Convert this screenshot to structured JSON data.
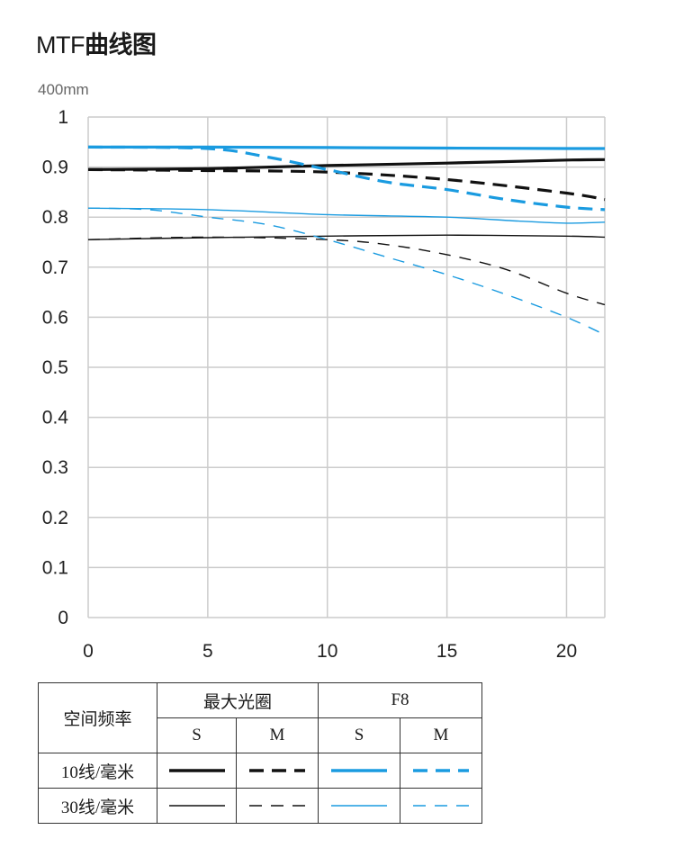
{
  "header": {
    "title_latin": "MTF",
    "title_cjk": "曲线图",
    "subtitle": "400mm"
  },
  "colors": {
    "black": "#111111",
    "blue": "#1a9be0",
    "grid": "#cccccc"
  },
  "chart_data": {
    "type": "line",
    "title": "MTF曲线图",
    "subtitle": "400mm",
    "xlim": [
      0,
      21.6
    ],
    "ylim": [
      0,
      1
    ],
    "x_ticks": [
      "0",
      "5",
      "10",
      "15",
      "20"
    ],
    "y_ticks": [
      "0",
      "0.1",
      "0.2",
      "0.3",
      "0.4",
      "0.5",
      "0.6",
      "0.7",
      "0.8",
      "0.9",
      "1"
    ],
    "grid": true,
    "series": [
      {
        "aperture": "最大光圈",
        "orientation": "S",
        "frequency": "10线/毫米",
        "color": "black",
        "style": "solid",
        "weight": "thick",
        "x": [
          0,
          5,
          10,
          15,
          20,
          21.6
        ],
        "y": [
          0.895,
          0.897,
          0.903,
          0.908,
          0.914,
          0.915
        ]
      },
      {
        "aperture": "最大光圈",
        "orientation": "M",
        "frequency": "10线/毫米",
        "color": "black",
        "style": "dashed",
        "weight": "thick",
        "x": [
          0,
          5,
          10,
          15,
          20,
          21.6
        ],
        "y": [
          0.895,
          0.893,
          0.89,
          0.875,
          0.848,
          0.835
        ]
      },
      {
        "aperture": "F8",
        "orientation": "S",
        "frequency": "10线/毫米",
        "color": "blue",
        "style": "solid",
        "weight": "thick",
        "x": [
          0,
          5,
          10,
          15,
          20,
          21.6
        ],
        "y": [
          0.94,
          0.94,
          0.939,
          0.938,
          0.937,
          0.937
        ]
      },
      {
        "aperture": "F8",
        "orientation": "M",
        "frequency": "10线/毫米",
        "color": "blue",
        "style": "dashed",
        "weight": "thick",
        "x": [
          0,
          5,
          7.5,
          10,
          12.5,
          15,
          17.5,
          20,
          21.6
        ],
        "y": [
          0.94,
          0.937,
          0.92,
          0.895,
          0.87,
          0.855,
          0.835,
          0.82,
          0.815
        ]
      },
      {
        "aperture": "最大光圈",
        "orientation": "S",
        "frequency": "30线/毫米",
        "color": "black",
        "style": "solid",
        "weight": "thin",
        "x": [
          0,
          5,
          10,
          15,
          20,
          21.6
        ],
        "y": [
          0.755,
          0.759,
          0.762,
          0.764,
          0.762,
          0.76
        ]
      },
      {
        "aperture": "最大光圈",
        "orientation": "M",
        "frequency": "30线/毫米",
        "color": "black",
        "style": "dashed",
        "weight": "thin",
        "x": [
          0,
          5,
          10,
          12.5,
          15,
          17.5,
          20,
          21.6
        ],
        "y": [
          0.755,
          0.76,
          0.755,
          0.745,
          0.725,
          0.695,
          0.648,
          0.625
        ]
      },
      {
        "aperture": "F8",
        "orientation": "S",
        "frequency": "30线/毫米",
        "color": "blue",
        "style": "solid",
        "weight": "thin",
        "x": [
          0,
          5,
          10,
          15,
          18,
          20,
          21.6
        ],
        "y": [
          0.818,
          0.815,
          0.805,
          0.8,
          0.792,
          0.788,
          0.79
        ]
      },
      {
        "aperture": "F8",
        "orientation": "M",
        "frequency": "30线/毫米",
        "color": "blue",
        "style": "dashed",
        "weight": "thin",
        "x": [
          0,
          2.5,
          5,
          7.5,
          10,
          12.5,
          15,
          17.5,
          20,
          21.6
        ],
        "y": [
          0.818,
          0.815,
          0.8,
          0.785,
          0.755,
          0.72,
          0.685,
          0.645,
          0.6,
          0.565
        ]
      }
    ]
  },
  "legend": {
    "row_header": "空间频率",
    "group_max": "最大光圈",
    "group_f8": "F8",
    "col_s": "S",
    "col_m": "M",
    "freq_10": "10线/毫米",
    "freq_30": "30线/毫米"
  }
}
